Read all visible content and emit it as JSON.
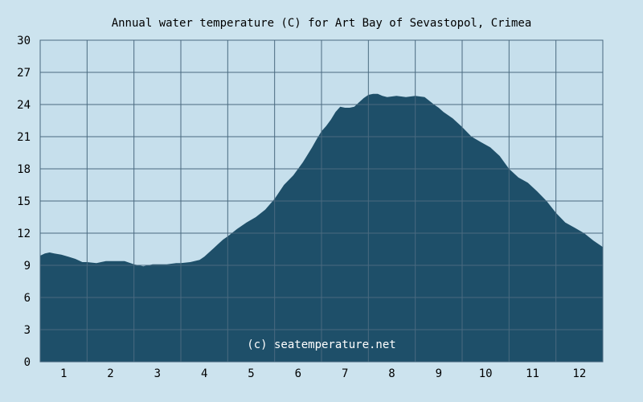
{
  "chart_data": {
    "type": "area",
    "title": "Annual water temperature (C) for Art Bay of Sevastopol, Crimea",
    "xlabel": "",
    "ylabel": "",
    "x_tick_labels": [
      "1",
      "2",
      "3",
      "4",
      "5",
      "6",
      "7",
      "8",
      "9",
      "10",
      "11",
      "12"
    ],
    "y_tick_labels": [
      "0",
      "3",
      "6",
      "9",
      "12",
      "15",
      "18",
      "21",
      "24",
      "27",
      "30"
    ],
    "ylim": [
      0,
      30
    ],
    "xlim": [
      0,
      12
    ],
    "grid": true,
    "legend": "none",
    "watermark": "(c) seatemperature.net",
    "colors": {
      "background": "#cce3ee",
      "plot_background": "#c6dfec",
      "fill": "#1e4f69",
      "grid": "#4a6a80"
    },
    "series": [
      {
        "x": [
          0,
          0.1,
          0.2,
          0.3,
          0.45,
          0.6,
          0.75,
          0.9,
          1.0,
          1.2,
          1.4,
          1.6,
          1.8,
          2.0,
          2.1,
          2.2,
          2.4,
          2.5,
          2.7,
          2.9,
          3.0,
          3.2,
          3.4,
          3.5,
          3.6,
          3.7,
          3.8,
          3.9,
          4.0,
          4.2,
          4.4,
          4.6,
          4.8,
          5.0,
          5.2,
          5.4,
          5.6,
          5.8,
          5.9,
          6.0,
          6.1,
          6.2,
          6.3,
          6.4,
          6.5,
          6.6,
          6.7,
          6.8,
          6.9,
          7.0,
          7.1,
          7.2,
          7.3,
          7.4,
          7.6,
          7.8,
          8.0,
          8.2,
          8.4,
          8.5,
          8.6,
          8.8,
          9.0,
          9.2,
          9.4,
          9.6,
          9.8,
          10.0,
          10.2,
          10.4,
          10.6,
          10.8,
          11.0,
          11.2,
          11.4,
          11.6,
          11.8,
          12.0
        ],
        "y": [
          9.9,
          10.1,
          10.2,
          10.1,
          10.0,
          9.8,
          9.6,
          9.3,
          9.3,
          9.2,
          9.4,
          9.4,
          9.4,
          9.1,
          9.0,
          8.9,
          9.1,
          9.1,
          9.1,
          9.2,
          9.2,
          9.3,
          9.5,
          9.8,
          10.2,
          10.6,
          11.0,
          11.4,
          11.7,
          12.4,
          13.0,
          13.5,
          14.2,
          15.2,
          16.5,
          17.4,
          18.6,
          20.0,
          20.8,
          21.5,
          22.0,
          22.6,
          23.3,
          23.8,
          23.7,
          23.7,
          23.8,
          24.2,
          24.6,
          24.9,
          25.0,
          25.0,
          24.8,
          24.7,
          24.8,
          24.7,
          24.8,
          24.7,
          24.0,
          23.7,
          23.3,
          22.7,
          21.9,
          21.0,
          20.5,
          20.0,
          19.2,
          18.0,
          17.2,
          16.7,
          15.9,
          15.0,
          13.9,
          13.0,
          12.5,
          12.0,
          11.3,
          10.7
        ]
      }
    ]
  }
}
